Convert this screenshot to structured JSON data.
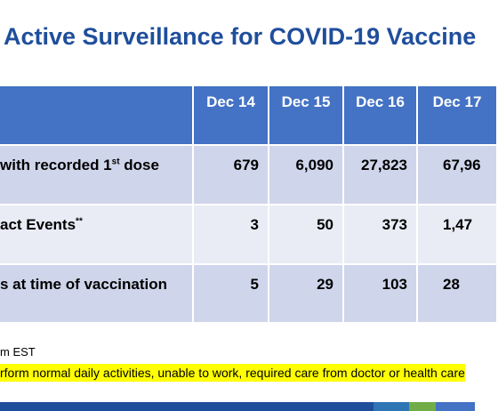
{
  "title": "Active Surveillance for COVID-19 Vaccine",
  "table": {
    "header": [
      "Dec 14",
      "Dec 15",
      "Dec 16",
      "Dec 17"
    ],
    "rows": [
      {
        "label": [
          "with recorded 1",
          "st",
          " dose"
        ],
        "cells": [
          "679",
          "6,090",
          "27,823",
          "67,96"
        ]
      },
      {
        "label": [
          "act Events",
          "**"
        ],
        "cells": [
          "3",
          "50",
          "373",
          "1,47"
        ]
      },
      {
        "label": [
          "s at time of vaccination"
        ],
        "cells": [
          "5",
          "29",
          "103",
          "28"
        ]
      }
    ]
  },
  "footnotes": [
    "m EST",
    "rform normal daily activities, unable to work, required care from doctor or health care"
  ]
}
